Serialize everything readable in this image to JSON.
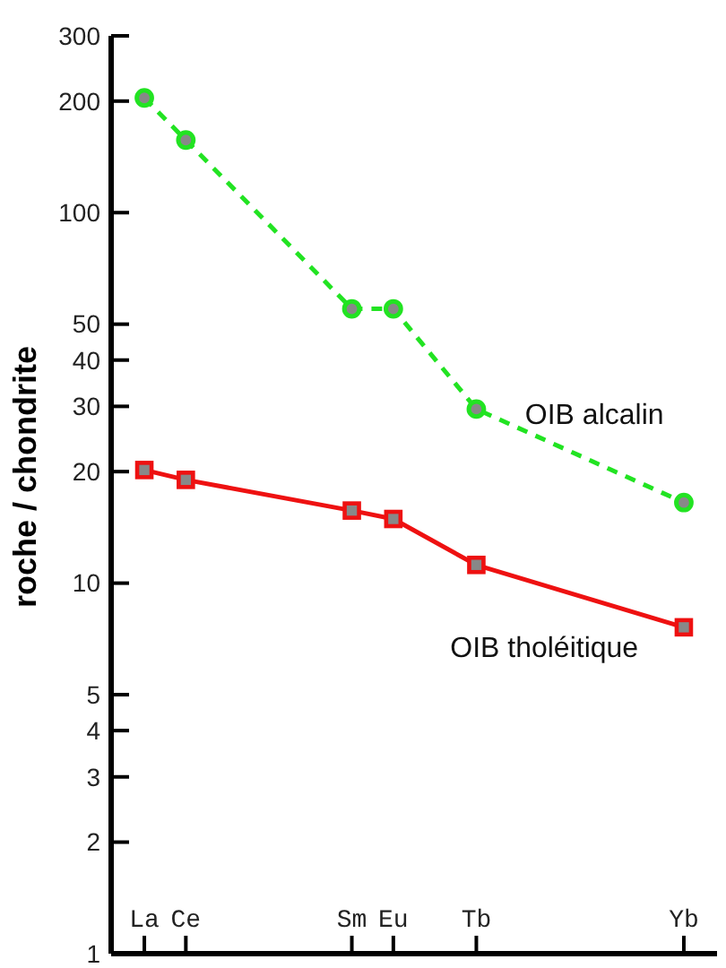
{
  "chart_data": {
    "type": "line",
    "ylabel": "roche / chondrite",
    "categories": [
      "La",
      "Ce",
      null,
      null,
      null,
      "Sm",
      "Eu",
      null,
      "Tb",
      null,
      null,
      null,
      null,
      "Yb"
    ],
    "log": true,
    "ylim": [
      1,
      300
    ],
    "yticks": [
      1,
      2,
      3,
      4,
      5,
      10,
      20,
      30,
      40,
      50,
      100,
      200,
      300
    ],
    "grid": false,
    "series": [
      {
        "name": "OIB alcalin",
        "color": "#22e322",
        "marker": "circle",
        "line_style": "dashed",
        "values": [
          204,
          157,
          null,
          null,
          null,
          55,
          55,
          null,
          29.5,
          null,
          null,
          null,
          null,
          16.5
        ]
      },
      {
        "name": "OIB tholéitique",
        "color": "#ee1111",
        "marker": "square",
        "line_style": "solid",
        "values": [
          20.2,
          19,
          null,
          null,
          null,
          15.7,
          14.9,
          null,
          11.2,
          null,
          null,
          null,
          null,
          7.6
        ]
      }
    ]
  }
}
